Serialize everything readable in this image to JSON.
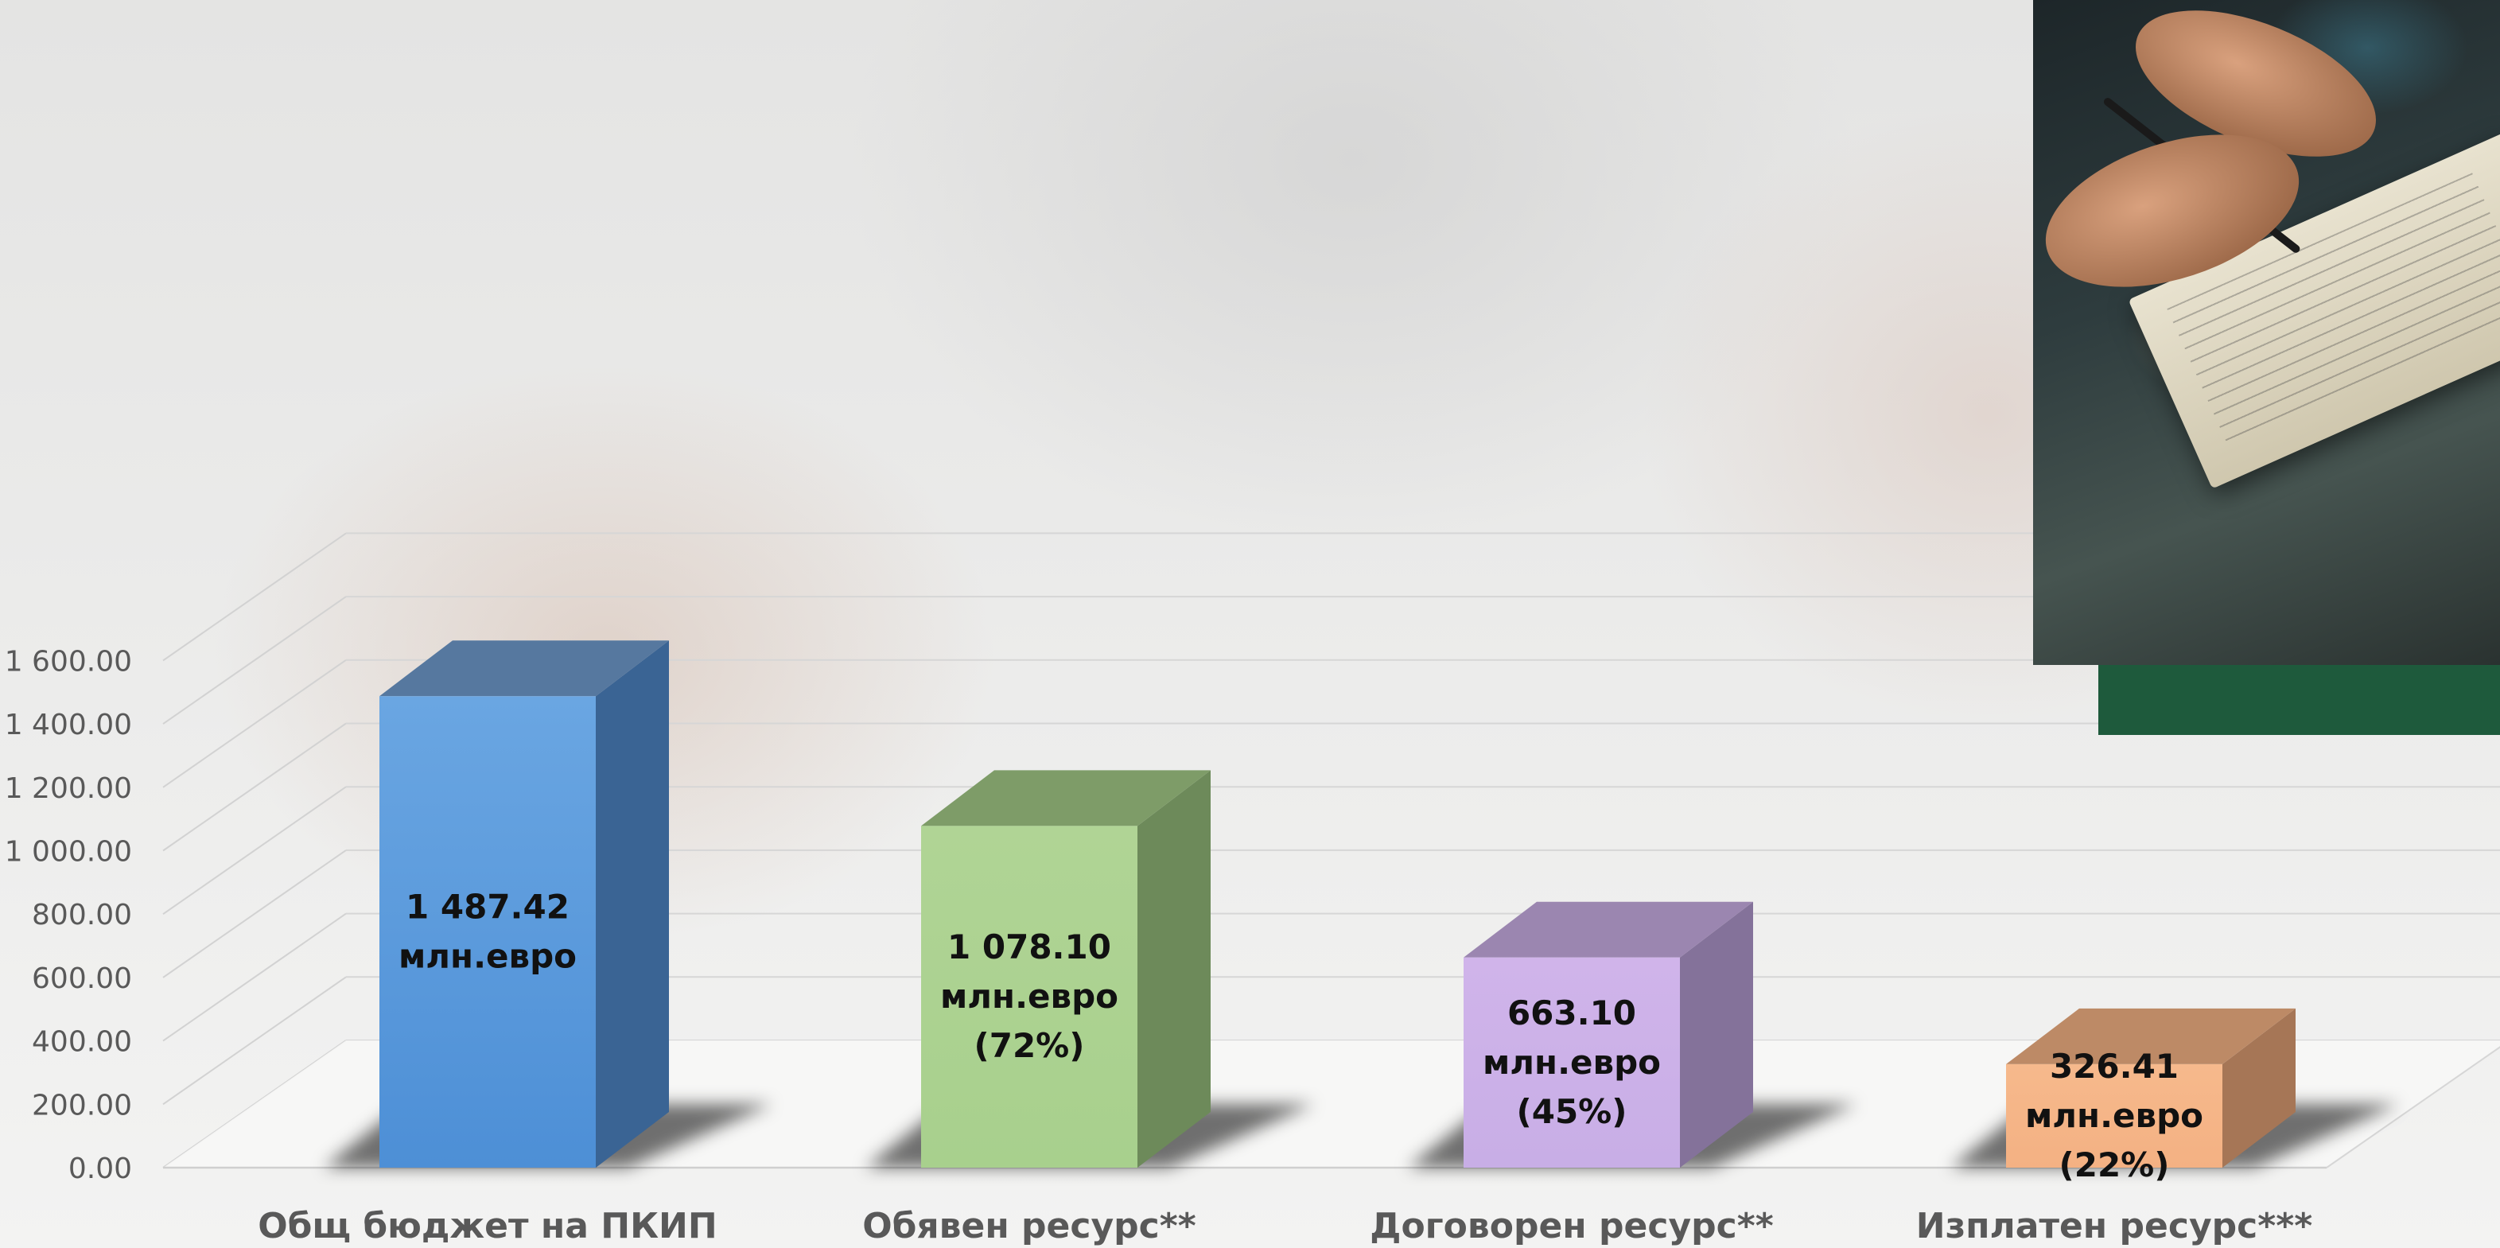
{
  "chart_data": {
    "type": "bar",
    "style": "3d",
    "categories": [
      "Общ бюджет на ПКИП",
      "Обявен ресурс**",
      "Договорен ресурс**",
      "Изплатен ресурс***"
    ],
    "values": [
      1487.42,
      1078.1,
      663.1,
      326.41
    ],
    "data_labels": [
      [
        "1 487.42",
        "млн.евро"
      ],
      [
        "1 078.10",
        "млн.евро",
        "(72%)"
      ],
      [
        "663.10",
        "млн.евро",
        "(45%)"
      ],
      [
        "326.41",
        "млн.евро",
        "(22%)"
      ]
    ],
    "y_ticks": [
      {
        "value": 0,
        "label": "0.00"
      },
      {
        "value": 200,
        "label": "200.00"
      },
      {
        "value": 400,
        "label": "400.00"
      },
      {
        "value": 600,
        "label": "600.00"
      },
      {
        "value": 800,
        "label": "800.00"
      },
      {
        "value": 1000,
        "label": "1 000.00"
      },
      {
        "value": 1200,
        "label": "1 200.00"
      },
      {
        "value": 1400,
        "label": "1 400.00"
      },
      {
        "value": 1600,
        "label": "1 600.00"
      }
    ],
    "ylim": [
      0,
      1800
    ],
    "grid": true,
    "title": "",
    "xlabel": "",
    "ylabel": "",
    "colors": [
      {
        "front": "#4d8fd6",
        "front_light": "#6aa6e2",
        "side": "#3a6494",
        "top": "#56789f"
      },
      {
        "front": "#a8d08d",
        "front_light": "#b0d495",
        "side": "#6d8a5a",
        "top": "#7e9c68"
      },
      {
        "front": "#c8aee6",
        "front_light": "#d0b4ea",
        "side": "#84729a",
        "top": "#9b86b0"
      },
      {
        "front": "#f4b183",
        "front_light": "#f6b98c",
        "side": "#a67656",
        "top": "#bd8a66"
      }
    ]
  },
  "decor": {
    "photo_icon": "document-signing-photo",
    "band_color": "#1e5a3c"
  }
}
